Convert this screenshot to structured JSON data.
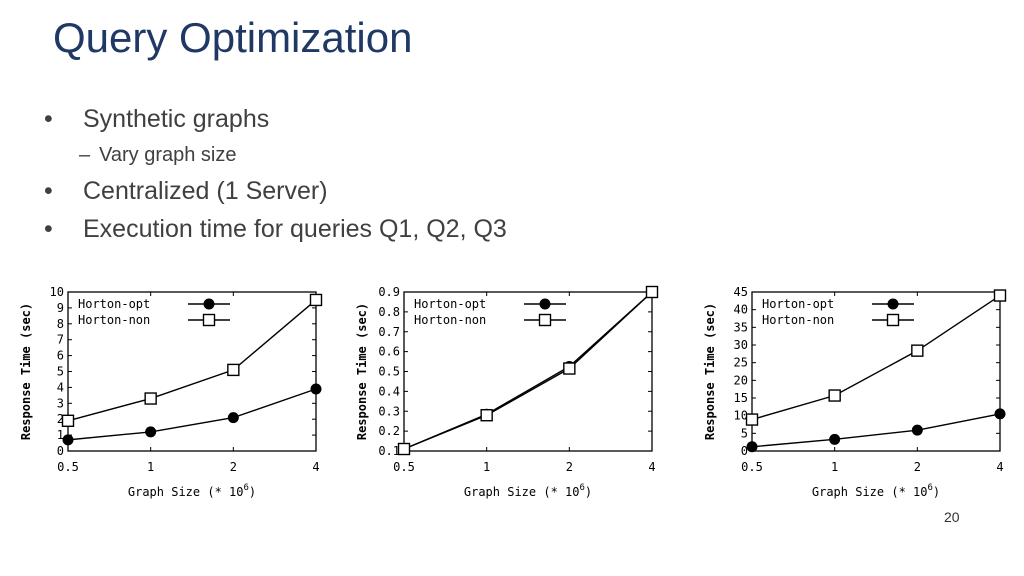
{
  "slide": {
    "title": "Query Optimization",
    "bullets": [
      {
        "level": 1,
        "text": "Synthetic graphs"
      },
      {
        "level": 2,
        "text": "Vary graph size"
      },
      {
        "level": 1,
        "text": "Centralized (1 Server)"
      },
      {
        "level": 1,
        "text": "Execution time for queries Q1, Q2, Q3"
      }
    ],
    "page_number": "20"
  },
  "chart_data": [
    {
      "type": "line",
      "xlabel": "Graph Size (* 10^6)",
      "ylabel": "Response Time (sec)",
      "categories": [
        "0.5",
        "1",
        "2",
        "4"
      ],
      "ylim": [
        0,
        10
      ],
      "yticks": [
        "0",
        "1",
        "2",
        "3",
        "4",
        "5",
        "6",
        "7",
        "8",
        "9",
        "10"
      ],
      "legend_position": "top-left",
      "series": [
        {
          "name": "Horton-opt",
          "marker": "filled-circle",
          "values": [
            0.7,
            1.2,
            2.1,
            3.9
          ]
        },
        {
          "name": "Horton-non",
          "marker": "open-square",
          "values": [
            1.9,
            3.3,
            5.1,
            9.5
          ]
        }
      ]
    },
    {
      "type": "line",
      "xlabel": "Graph Size (* 10^6)",
      "ylabel": "Response Time (sec)",
      "categories": [
        "0.5",
        "1",
        "2",
        "4"
      ],
      "ylim": [
        0.1,
        0.9
      ],
      "yticks": [
        "0.1",
        "0.2",
        "0.3",
        "0.4",
        "0.5",
        "0.6",
        "0.7",
        "0.8",
        "0.9"
      ],
      "legend_position": "top-left",
      "series": [
        {
          "name": "Horton-opt",
          "marker": "filled-circle",
          "values": [
            0.11,
            0.285,
            0.525,
            0.9
          ]
        },
        {
          "name": "Horton-non",
          "marker": "open-square",
          "values": [
            0.11,
            0.28,
            0.515,
            0.9
          ]
        }
      ]
    },
    {
      "type": "line",
      "xlabel": "Graph Size (* 10^6)",
      "ylabel": "Response Time (sec)",
      "categories": [
        "0.5",
        "1",
        "2",
        "4"
      ],
      "ylim": [
        0,
        45
      ],
      "yticks": [
        "0",
        "5",
        "10",
        "15",
        "20",
        "25",
        "30",
        "35",
        "40",
        "45"
      ],
      "legend_position": "top-left",
      "series": [
        {
          "name": "Horton-opt",
          "marker": "filled-circle",
          "values": [
            1.2,
            3.3,
            5.9,
            10.5
          ]
        },
        {
          "name": "Horton-non",
          "marker": "open-square",
          "values": [
            8.9,
            15.7,
            28.4,
            44.0
          ]
        }
      ]
    }
  ]
}
